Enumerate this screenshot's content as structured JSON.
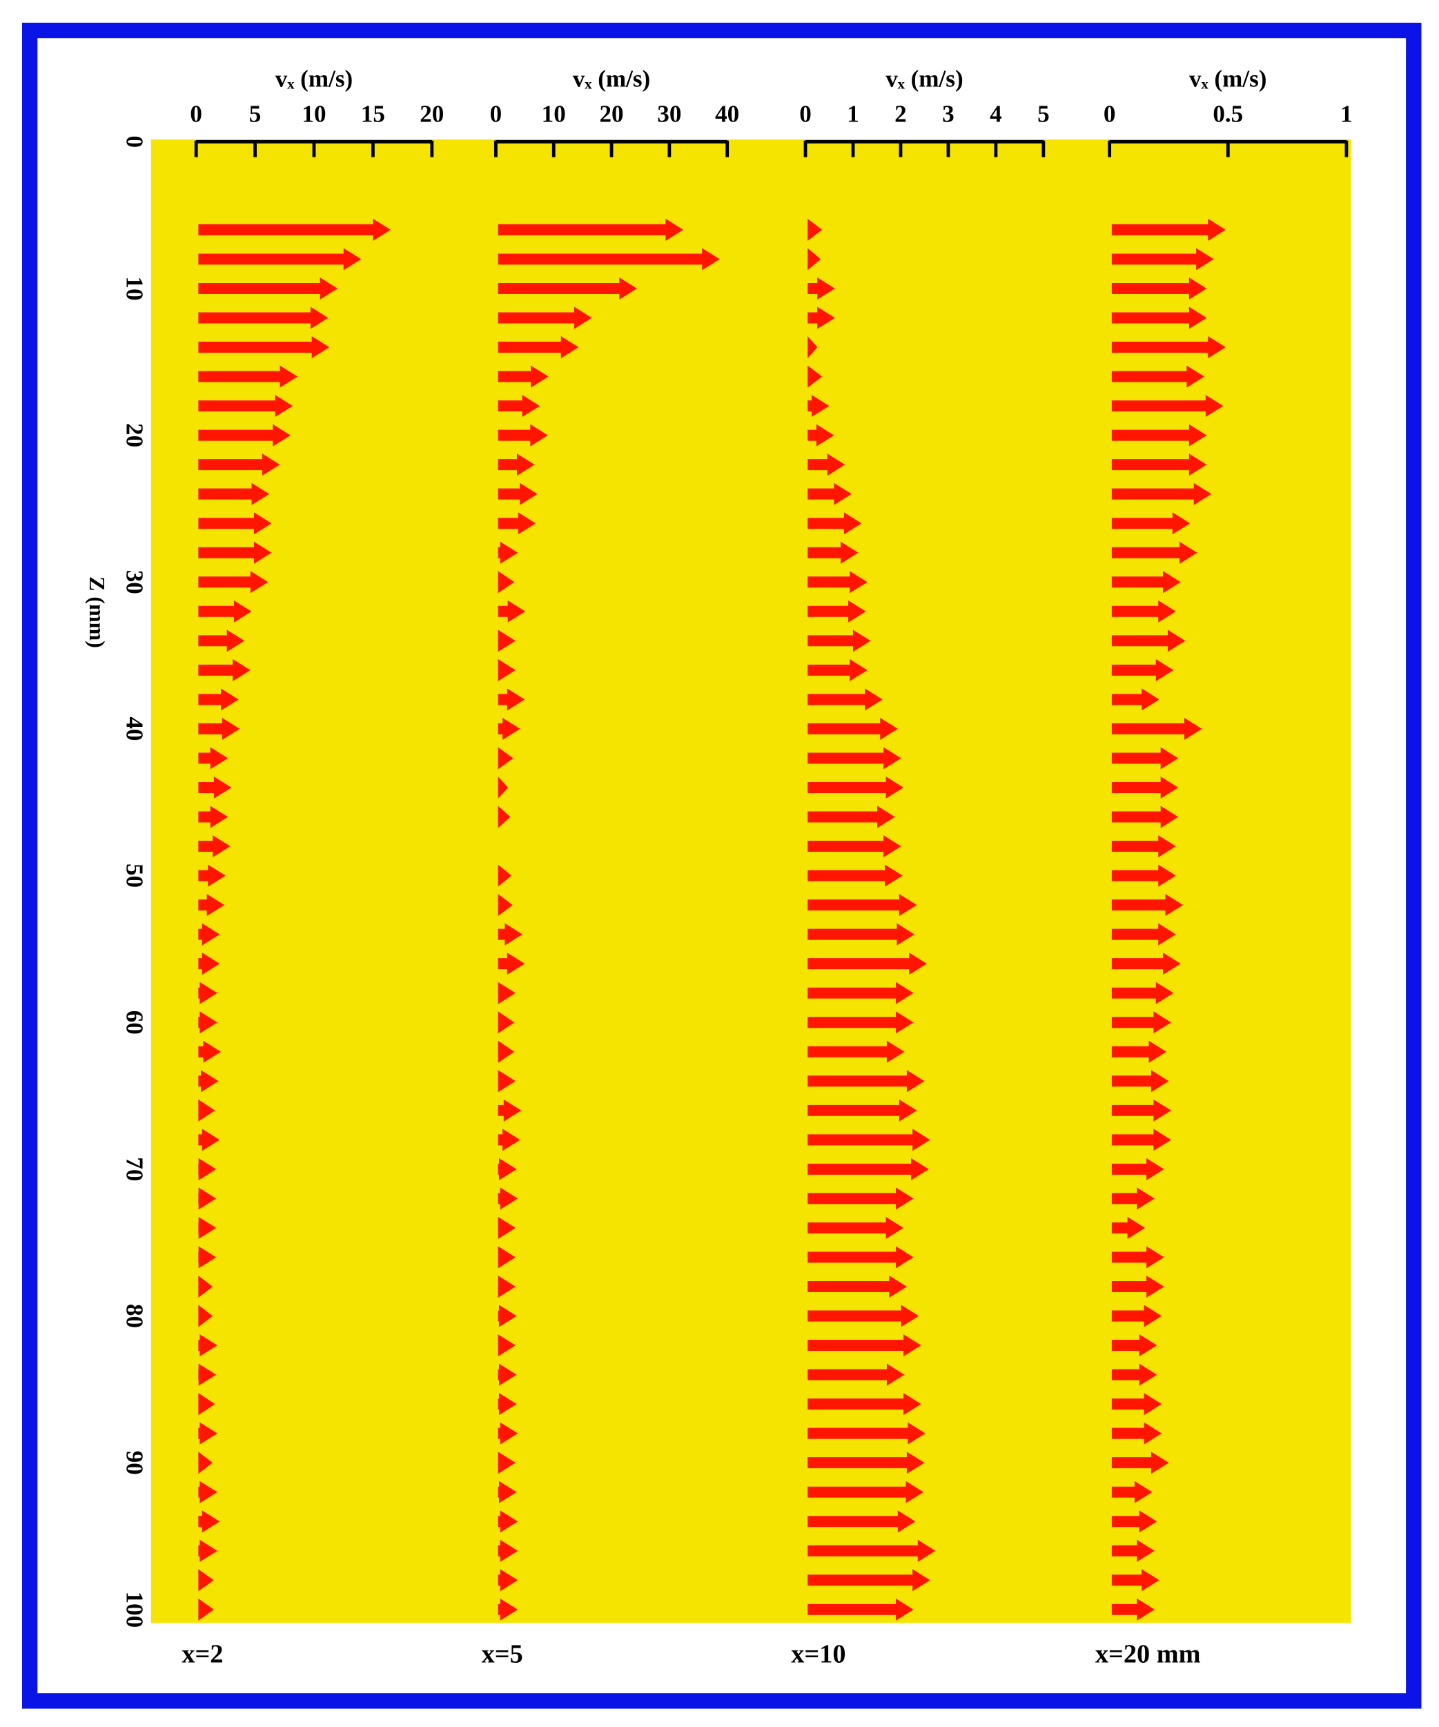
{
  "chart_data": [
    {
      "type": "quiver",
      "xlabel": "vₓ (m/s)",
      "caption": "x=2",
      "ylabel": "Z (mm)",
      "color": "#ff1500",
      "background": "#f5e400",
      "xlim": [
        0,
        20
      ],
      "xticks": [
        0,
        5,
        10,
        15,
        20
      ],
      "ylim": [
        0,
        100
      ],
      "yticks": [
        0,
        10,
        20,
        30,
        40,
        50,
        60,
        70,
        80,
        90,
        100
      ],
      "y": [
        6,
        8,
        10,
        12,
        14,
        16,
        18,
        20,
        22,
        24,
        26,
        28,
        30,
        32,
        34,
        36,
        38,
        40,
        42,
        44,
        46,
        48,
        50,
        52,
        54,
        56,
        58,
        60,
        62,
        64,
        66,
        68,
        70,
        72,
        74,
        76,
        78,
        80,
        82,
        84,
        86,
        88,
        90,
        92,
        94,
        96,
        98,
        100
      ],
      "values": [
        16.5,
        14,
        12,
        11.2,
        11.3,
        8.6,
        8.2,
        8,
        7.1,
        6.2,
        6.4,
        6.4,
        6.1,
        4.7,
        4.1,
        4.6,
        3.6,
        3.7,
        2.7,
        3,
        2.7,
        2.9,
        2.5,
        2.4,
        2,
        2,
        1.8,
        1.8,
        2.1,
        1.9,
        1.6,
        2,
        1.7,
        1.7,
        1.7,
        1.7,
        1.4,
        1.4,
        1.8,
        1.7,
        1.6,
        1.8,
        1.4,
        1.8,
        2,
        1.8,
        1.5,
        1.5
      ]
    },
    {
      "type": "quiver",
      "xlabel": "vₓ (m/s)",
      "caption": "x=5",
      "color": "#ff1500",
      "xlim": [
        0,
        40
      ],
      "xticks": [
        0,
        10,
        20,
        30,
        40
      ],
      "ylim": [
        0,
        100
      ],
      "y": [
        6,
        8,
        10,
        12,
        14,
        16,
        18,
        20,
        22,
        24,
        26,
        28,
        30,
        32,
        34,
        36,
        38,
        40,
        42,
        44,
        46,
        48,
        50,
        52,
        54,
        56,
        58,
        60,
        62,
        64,
        66,
        68,
        70,
        72,
        74,
        76,
        78,
        80,
        82,
        84,
        86,
        88,
        90,
        92,
        94,
        96,
        98,
        100
      ],
      "values": [
        32.4,
        38.7,
        24.4,
        16.6,
        14.3,
        9.1,
        7.6,
        9,
        6.7,
        7.2,
        6.9,
        3.8,
        3.2,
        5.1,
        3.4,
        3.4,
        5,
        4.2,
        3,
        2.1,
        2.5,
        0,
        2.7,
        2.9,
        4.6,
        5,
        3.4,
        3.2,
        3.2,
        3.4,
        4.4,
        4.2,
        3.6,
        3.8,
        3.4,
        3.4,
        3.4,
        3.6,
        3.4,
        3.6,
        3.6,
        3.8,
        3.4,
        3.6,
        3.8,
        3.8,
        3.8,
        3.8
      ]
    },
    {
      "type": "quiver",
      "xlabel": "vₓ (m/s)",
      "caption": "x=10",
      "color": "#ff1500",
      "xlim": [
        0,
        5
      ],
      "xticks": [
        0,
        1,
        2,
        3,
        4,
        5
      ],
      "ylim": [
        0,
        100
      ],
      "y": [
        6,
        8,
        10,
        12,
        14,
        16,
        18,
        20,
        22,
        24,
        26,
        28,
        30,
        32,
        34,
        36,
        38,
        40,
        42,
        44,
        46,
        48,
        50,
        52,
        54,
        56,
        58,
        60,
        62,
        64,
        66,
        68,
        70,
        72,
        74,
        76,
        78,
        80,
        82,
        84,
        86,
        88,
        90,
        92,
        94,
        96,
        98,
        100
      ],
      "values": [
        0.35,
        0.32,
        0.62,
        0.62,
        0.25,
        0.35,
        0.5,
        0.6,
        0.83,
        0.97,
        1.18,
        1.11,
        1.3,
        1.27,
        1.37,
        1.3,
        1.62,
        1.94,
        2.01,
        2.06,
        1.88,
        2.01,
        2.04,
        2.34,
        2.29,
        2.55,
        2.27,
        2.27,
        2.08,
        2.5,
        2.34,
        2.62,
        2.59,
        2.27,
        2.06,
        2.27,
        2.13,
        2.38,
        2.43,
        2.08,
        2.43,
        2.52,
        2.5,
        2.48,
        2.31,
        2.73,
        2.62,
        2.27
      ]
    },
    {
      "type": "quiver",
      "xlabel": "vₓ (m/s)",
      "caption": "x=20 mm",
      "color": "#ff1500",
      "xlim": [
        0,
        1
      ],
      "xticks": [
        0,
        0.5,
        1
      ],
      "ylim": [
        0,
        100
      ],
      "y": [
        6,
        8,
        10,
        12,
        14,
        16,
        18,
        20,
        22,
        24,
        26,
        28,
        30,
        32,
        34,
        36,
        38,
        40,
        42,
        44,
        46,
        48,
        50,
        52,
        54,
        56,
        58,
        60,
        62,
        64,
        66,
        68,
        70,
        72,
        74,
        76,
        78,
        80,
        82,
        84,
        86,
        88,
        90,
        92,
        94,
        96,
        98,
        100
      ],
      "values": [
        0.49,
        0.44,
        0.41,
        0.41,
        0.49,
        0.4,
        0.48,
        0.41,
        0.41,
        0.43,
        0.34,
        0.37,
        0.3,
        0.28,
        0.32,
        0.27,
        0.21,
        0.39,
        0.29,
        0.29,
        0.29,
        0.28,
        0.28,
        0.31,
        0.28,
        0.3,
        0.27,
        0.26,
        0.24,
        0.25,
        0.26,
        0.26,
        0.23,
        0.19,
        0.15,
        0.23,
        0.23,
        0.22,
        0.2,
        0.2,
        0.22,
        0.22,
        0.25,
        0.18,
        0.2,
        0.19,
        0.21,
        0.19
      ]
    }
  ]
}
